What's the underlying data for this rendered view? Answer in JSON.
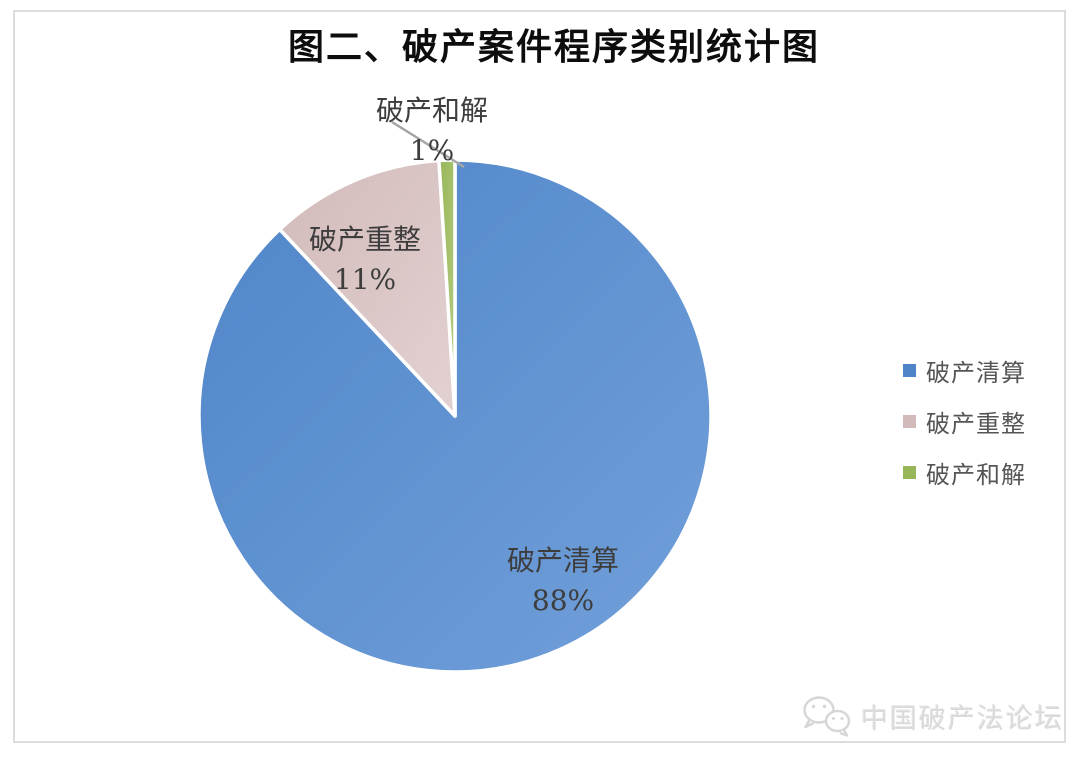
{
  "page": {
    "background": "#ffffff",
    "border_color": "#dcdcdc"
  },
  "chart_data": {
    "type": "pie",
    "title": "图二、破产案件程序类别统计图",
    "start_angle_deg": 0,
    "direction": "clockwise",
    "grid": false,
    "slices": [
      {
        "label": "破产清算",
        "value": 88,
        "pct_label": "88%",
        "color": "#4f85c8",
        "color_light": "#72a0da"
      },
      {
        "label": "破产重整",
        "value": 11,
        "pct_label": "11%",
        "color": "#d2baba",
        "color_light": "#e3d1d1"
      },
      {
        "label": "破产和解",
        "value": 1,
        "pct_label": "1%",
        "color": "#97b657",
        "color_light": "#b5cd82"
      }
    ],
    "legend": {
      "position": "right",
      "entries": [
        "破产清算",
        "破产重整",
        "破产和解"
      ]
    },
    "data_label_color": "#3d3d3d",
    "leader_line_color": "#a6a6a6",
    "slice_border_color": "#ffffff"
  },
  "watermark": {
    "text": "中国破产法论坛",
    "icon": "wechat-icon",
    "color": "#dadada"
  }
}
